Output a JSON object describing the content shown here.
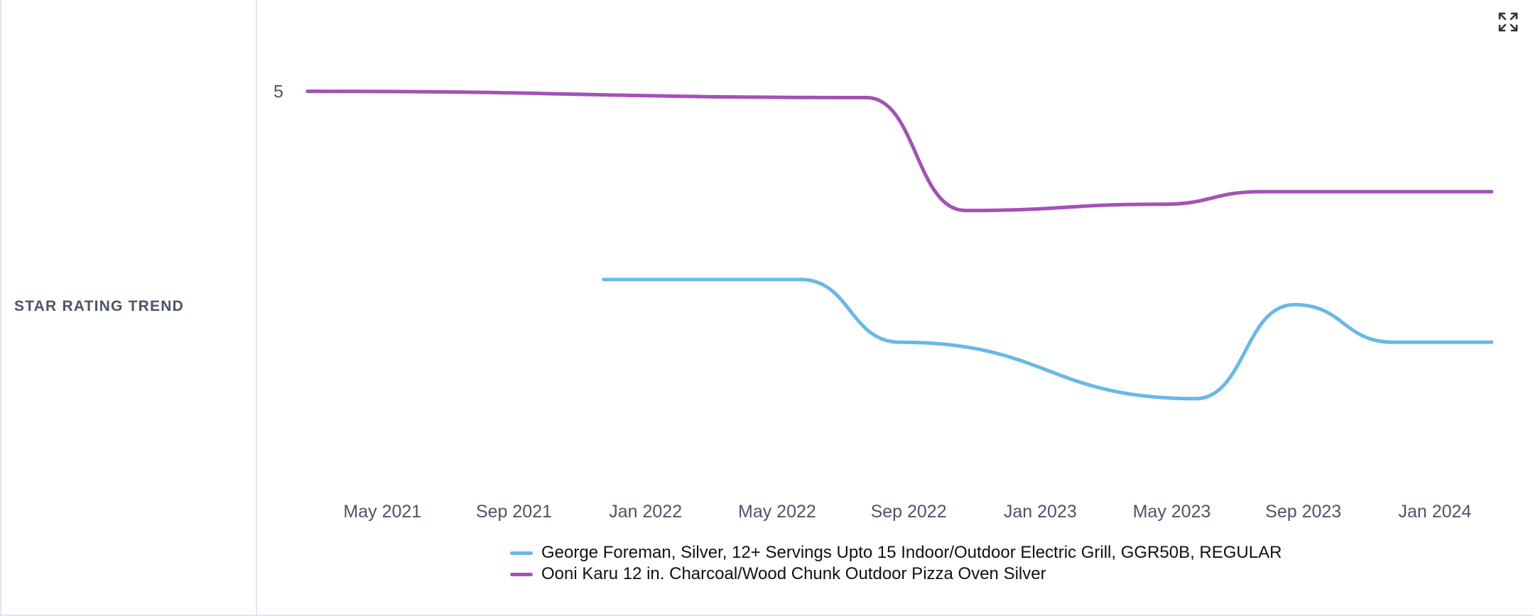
{
  "panel": {
    "title": "STAR RATING TREND"
  },
  "chart_data": {
    "type": "line",
    "title": "STAR RATING TREND",
    "xlabel": "",
    "ylabel": "",
    "x_ticks": [
      "May 2021",
      "Sep 2021",
      "Jan 2022",
      "May 2022",
      "Sep 2022",
      "Jan 2023",
      "May 2023",
      "Sep 2023",
      "Jan 2024"
    ],
    "y_ticks": [
      "5"
    ],
    "ylim": [
      4.7,
      5.01
    ],
    "series": [
      {
        "name": "George Foreman, Silver, 12+ Servings Upto 15 Indoor/Outdoor Electric Grill, GGR50B, REGULAR",
        "color": "#6ab8e6",
        "x": [
          "2022-01",
          "2022-07",
          "2022-10",
          "2023-07",
          "2023-10",
          "2024-01",
          "2024-04"
        ],
        "y": [
          4.85,
          4.85,
          4.8,
          4.755,
          4.83,
          4.8,
          4.8
        ]
      },
      {
        "name": "Ooni Karu 12 in. Charcoal/Wood Chunk Outdoor Pizza Oven Silver",
        "color": "#a352b4",
        "x": [
          "2021-04",
          "2022-09",
          "2022-12",
          "2023-06",
          "2023-09",
          "2024-04"
        ],
        "y": [
          5.0,
          4.995,
          4.905,
          4.91,
          4.92,
          4.92
        ]
      }
    ],
    "legend_position": "bottom"
  },
  "controls": {
    "expand_icon": "expand-icon"
  }
}
